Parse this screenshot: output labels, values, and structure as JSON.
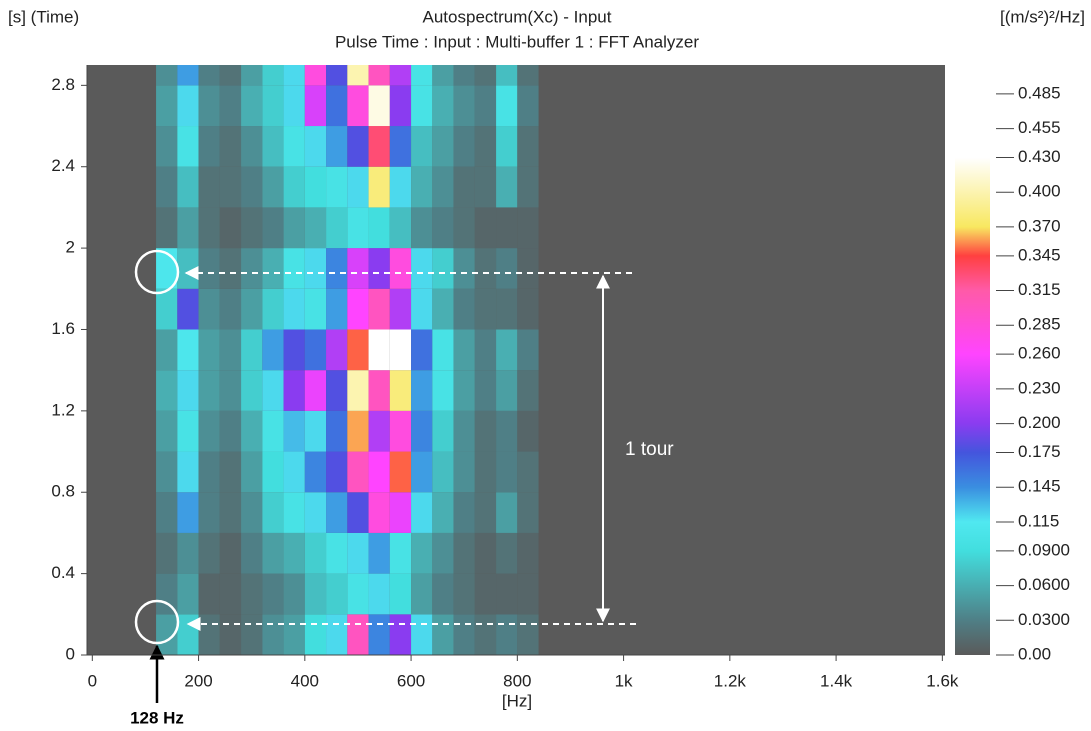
{
  "chart_data": {
    "type": "heatmap",
    "title": "Autospectrum(Xc) - Input",
    "subtitle": "Pulse Time : Input : Multi-buffer 1 : FFT Analyzer",
    "y_label": "[s] (Time)",
    "x_label": "[Hz]",
    "colorbar_label": "[(m/s²)²/Hz]",
    "annotations": [
      "1 tour",
      "128 Hz"
    ],
    "xlim": [
      -10,
      1605
    ],
    "ylim": [
      0,
      2.9
    ],
    "xticks": [
      0,
      200,
      400,
      600,
      800,
      {
        "value": 1000,
        "label": "1k"
      },
      {
        "value": 1200,
        "label": "1.2k"
      },
      {
        "value": 1400,
        "label": "1.4k"
      },
      {
        "value": 1600,
        "label": "1.6k"
      }
    ],
    "yticks": [
      0,
      0.4,
      0.8,
      1.2,
      1.6,
      2,
      2.4,
      2.8
    ],
    "background": "#5a5a5a",
    "x_edges": [
      120,
      160,
      200,
      240,
      280,
      320,
      360,
      400,
      440,
      480,
      520,
      560,
      600,
      640,
      680,
      720,
      760,
      800,
      840
    ],
    "y_edges": [
      0,
      0.2,
      0.4,
      0.6,
      0.8,
      1.0,
      1.2,
      1.4,
      1.6,
      1.8,
      2.0,
      2.2,
      2.4,
      2.6,
      2.8,
      2.9
    ],
    "z": [
      [
        0.05,
        0.08,
        0.02,
        0.01,
        0.02,
        0.04,
        0.05,
        0.09,
        0.12,
        0.3,
        0.15,
        0.2,
        0.12,
        0.05,
        0.03,
        0.02,
        0.03,
        0.02
      ],
      [
        0.03,
        0.05,
        0.01,
        0.01,
        0.02,
        0.03,
        0.04,
        0.07,
        0.08,
        0.1,
        0.12,
        0.09,
        0.05,
        0.03,
        0.02,
        0.01,
        0.01,
        0.01
      ],
      [
        0.02,
        0.04,
        0.02,
        0.01,
        0.03,
        0.05,
        0.06,
        0.08,
        0.1,
        0.12,
        0.14,
        0.1,
        0.06,
        0.04,
        0.02,
        0.01,
        0.02,
        0.01
      ],
      [
        0.03,
        0.14,
        0.03,
        0.02,
        0.04,
        0.08,
        0.1,
        0.12,
        0.14,
        0.18,
        0.28,
        0.25,
        0.12,
        0.06,
        0.03,
        0.02,
        0.05,
        0.02
      ],
      [
        0.04,
        0.12,
        0.03,
        0.02,
        0.05,
        0.09,
        0.12,
        0.15,
        0.18,
        0.3,
        0.26,
        0.35,
        0.14,
        0.07,
        0.04,
        0.02,
        0.03,
        0.02
      ],
      [
        0.05,
        0.1,
        0.04,
        0.03,
        0.06,
        0.1,
        0.13,
        0.12,
        0.16,
        0.36,
        0.22,
        0.28,
        0.15,
        0.08,
        0.04,
        0.02,
        0.03,
        0.01
      ],
      [
        0.06,
        0.12,
        0.05,
        0.04,
        0.08,
        0.12,
        0.2,
        0.25,
        0.18,
        0.4,
        0.3,
        0.38,
        0.14,
        0.1,
        0.05,
        0.03,
        0.05,
        0.02
      ],
      [
        0.05,
        0.11,
        0.05,
        0.04,
        0.08,
        0.14,
        0.18,
        0.16,
        0.22,
        0.35,
        0.44,
        0.44,
        0.16,
        0.1,
        0.05,
        0.03,
        0.06,
        0.03
      ],
      [
        0.08,
        0.18,
        0.04,
        0.03,
        0.05,
        0.08,
        0.12,
        0.1,
        0.14,
        0.26,
        0.3,
        0.22,
        0.12,
        0.06,
        0.03,
        0.02,
        0.02,
        0.01
      ],
      [
        0.11,
        0.07,
        0.03,
        0.02,
        0.04,
        0.06,
        0.1,
        0.12,
        0.15,
        0.24,
        0.2,
        0.28,
        0.12,
        0.08,
        0.04,
        0.02,
        0.03,
        0.01
      ],
      [
        0.02,
        0.05,
        0.02,
        0.01,
        0.02,
        0.03,
        0.05,
        0.06,
        0.08,
        0.1,
        0.09,
        0.07,
        0.04,
        0.03,
        0.02,
        0.01,
        0.01,
        0.01
      ],
      [
        0.03,
        0.07,
        0.02,
        0.02,
        0.03,
        0.05,
        0.08,
        0.09,
        0.1,
        0.12,
        0.38,
        0.12,
        0.06,
        0.04,
        0.02,
        0.02,
        0.06,
        0.02
      ],
      [
        0.04,
        0.1,
        0.03,
        0.02,
        0.04,
        0.07,
        0.1,
        0.12,
        0.14,
        0.18,
        0.33,
        0.16,
        0.07,
        0.05,
        0.03,
        0.02,
        0.08,
        0.02
      ],
      [
        0.05,
        0.12,
        0.04,
        0.03,
        0.06,
        0.08,
        0.12,
        0.24,
        0.16,
        0.28,
        0.42,
        0.2,
        0.1,
        0.06,
        0.04,
        0.03,
        0.1,
        0.03
      ],
      [
        0.04,
        0.14,
        0.03,
        0.02,
        0.05,
        0.08,
        0.12,
        0.28,
        0.18,
        0.4,
        0.3,
        0.22,
        0.1,
        0.05,
        0.03,
        0.02,
        0.07,
        0.02
      ]
    ],
    "zlim": [
      0,
      0.44
    ],
    "colorscale": [
      [
        0,
        "#5a5a5a"
      ],
      [
        0.03,
        "#4f7f86"
      ],
      [
        0.09,
        "#42dede"
      ],
      [
        0.115,
        "#50e8f0"
      ],
      [
        0.145,
        "#3a8ee0"
      ],
      [
        0.175,
        "#4455dd"
      ],
      [
        0.2,
        "#8a3cf0"
      ],
      [
        0.26,
        "#ff44ff"
      ],
      [
        0.315,
        "#ff5aa8"
      ],
      [
        0.345,
        "#ff4040"
      ],
      [
        0.37,
        "#f8e860"
      ],
      [
        0.43,
        "#ffffff"
      ],
      [
        0.44,
        "#ffffff"
      ]
    ],
    "colorbar_ticks": [
      {
        "value": 0,
        "label": "0.00"
      },
      {
        "value": 0.03,
        "label": "0.0300"
      },
      {
        "value": 0.06,
        "label": "0.0600"
      },
      {
        "value": 0.09,
        "label": "0.0900"
      },
      0.115,
      0.145,
      0.175,
      {
        "value": 0.2,
        "label": "0.200"
      },
      {
        "value": 0.23,
        "label": "0.230"
      },
      {
        "value": 0.26,
        "label": "0.260"
      },
      0.285,
      0.315,
      0.345,
      {
        "value": 0.37,
        "label": "0.370"
      },
      {
        "value": 0.4,
        "label": "0.400"
      },
      {
        "value": 0.43,
        "label": "0.430"
      },
      0.455,
      0.485
    ]
  }
}
